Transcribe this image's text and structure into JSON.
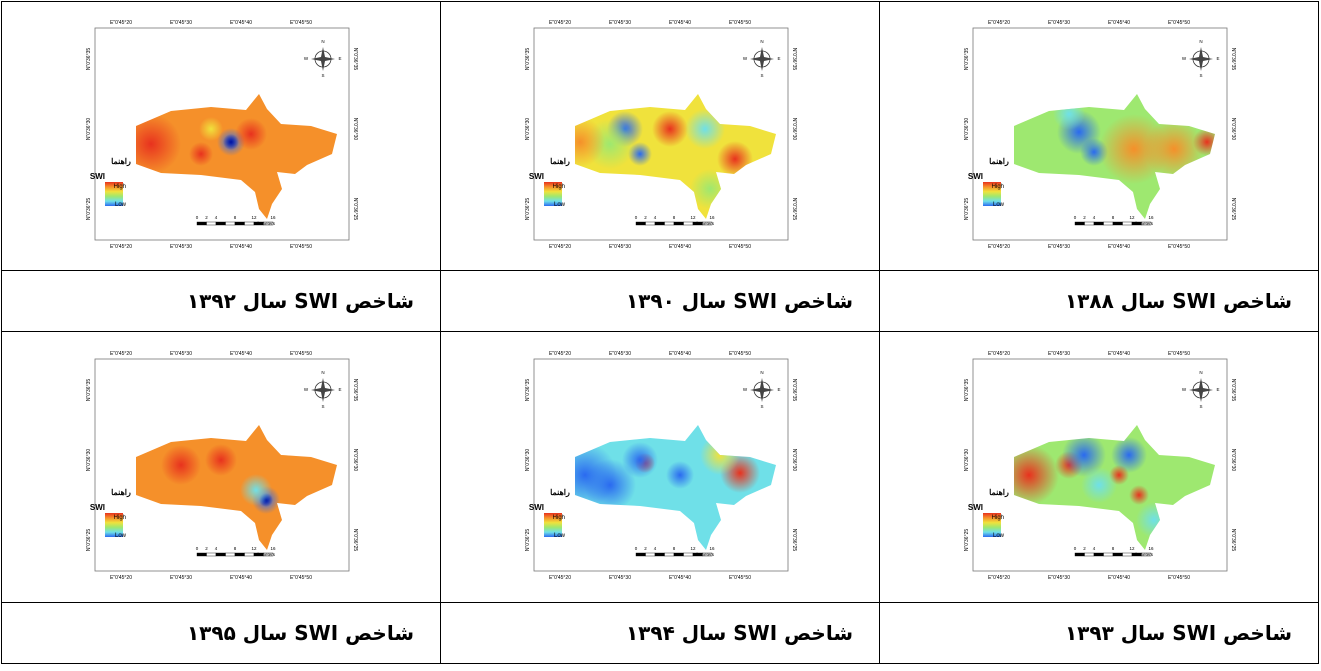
{
  "map_labels": {
    "legend_title": "راهنما",
    "index": "SWI",
    "high": "High",
    "low": "Low",
    "scale_unit": "Kilometers",
    "scale_ticks": [
      "0",
      "2",
      "4",
      "8",
      "12",
      "16"
    ],
    "lon_labels": [
      "45°20'0\"E",
      "45°30'0\"E",
      "45°40'0\"E",
      "45°50'0\"E"
    ],
    "lat_labels": [
      "36°35'0\"N",
      "36°30'0\"N",
      "36°25'0\"N"
    ],
    "compass": [
      "N",
      "E",
      "S",
      "W"
    ]
  },
  "cells": [
    {
      "caption": "شاخص SWI سال ۱۳۸۸"
    },
    {
      "caption": "شاخص SWI سال ۱۳۹۰"
    },
    {
      "caption": "شاخص SWI سال ۱۳۹۲"
    },
    {
      "caption": "شاخص SWI سال ۱۳۹۳"
    },
    {
      "caption": "شاخص SWI سال ۱۳۹۴"
    },
    {
      "caption": "شاخص SWI سال ۱۳۹۵"
    }
  ]
}
